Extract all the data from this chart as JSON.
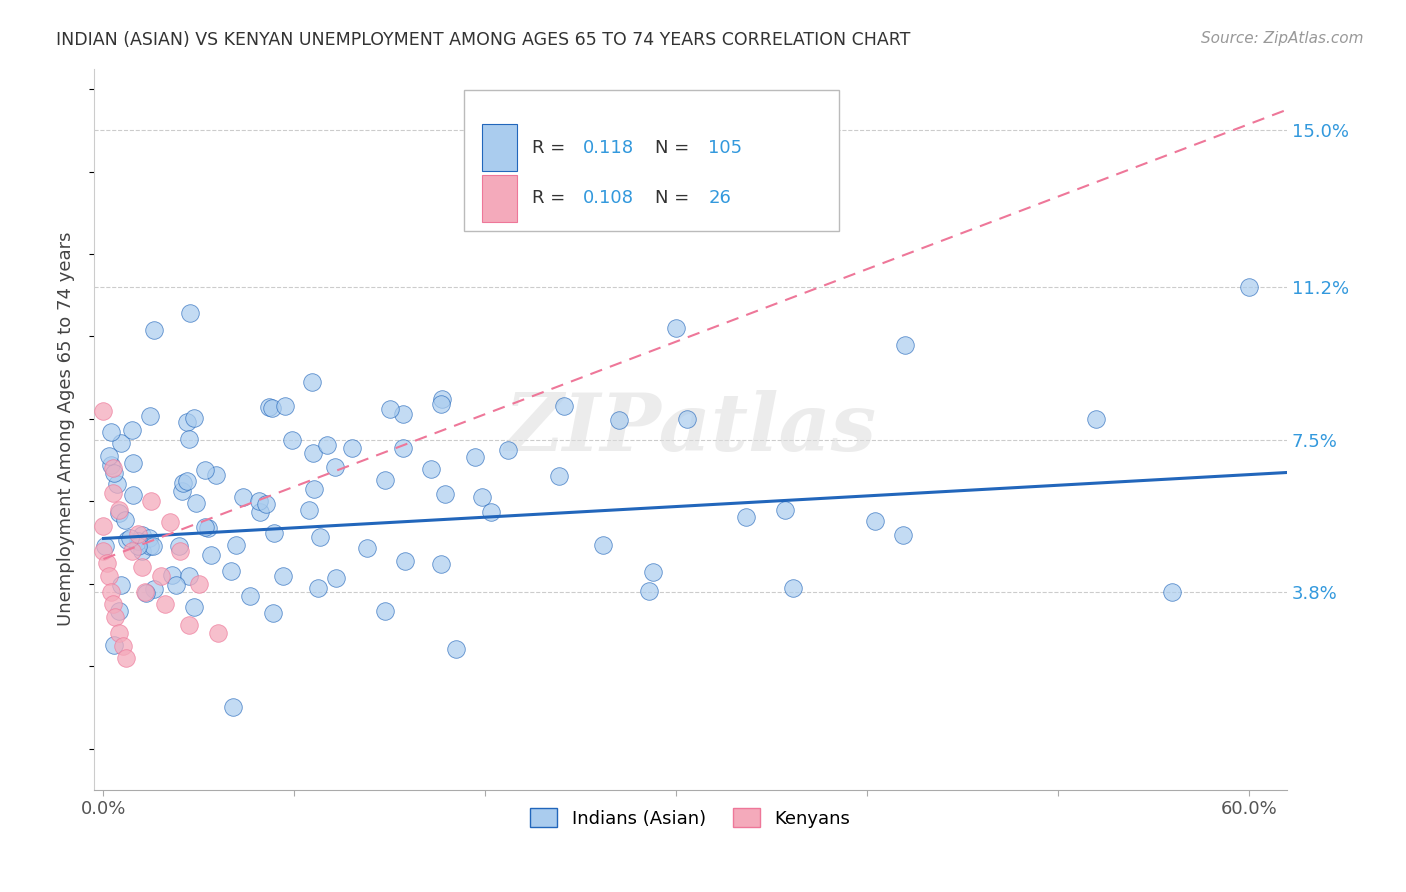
{
  "title": "INDIAN (ASIAN) VS KENYAN UNEMPLOYMENT AMONG AGES 65 TO 74 YEARS CORRELATION CHART",
  "source": "Source: ZipAtlas.com",
  "ylabel": "Unemployment Among Ages 65 to 74 years",
  "xlim": [
    -0.005,
    0.62
  ],
  "ylim": [
    -0.01,
    0.165
  ],
  "ytick_vals": [
    0.038,
    0.075,
    0.112,
    0.15
  ],
  "ytick_labels": [
    "3.8%",
    "7.5%",
    "11.2%",
    "15.0%"
  ],
  "indian_r": 0.118,
  "indian_n": 105,
  "kenyan_r": 0.108,
  "kenyan_n": 26,
  "indian_color": "#aaccee",
  "kenyan_color": "#f4aabb",
  "indian_line_color": "#2266bb",
  "kenyan_line_color": "#ee7799",
  "indian_line_start_y": 0.051,
  "indian_line_end_y": 0.067,
  "kenyan_line_start_y": 0.046,
  "kenyan_line_end_y": 0.155,
  "watermark": "ZIPatlas"
}
